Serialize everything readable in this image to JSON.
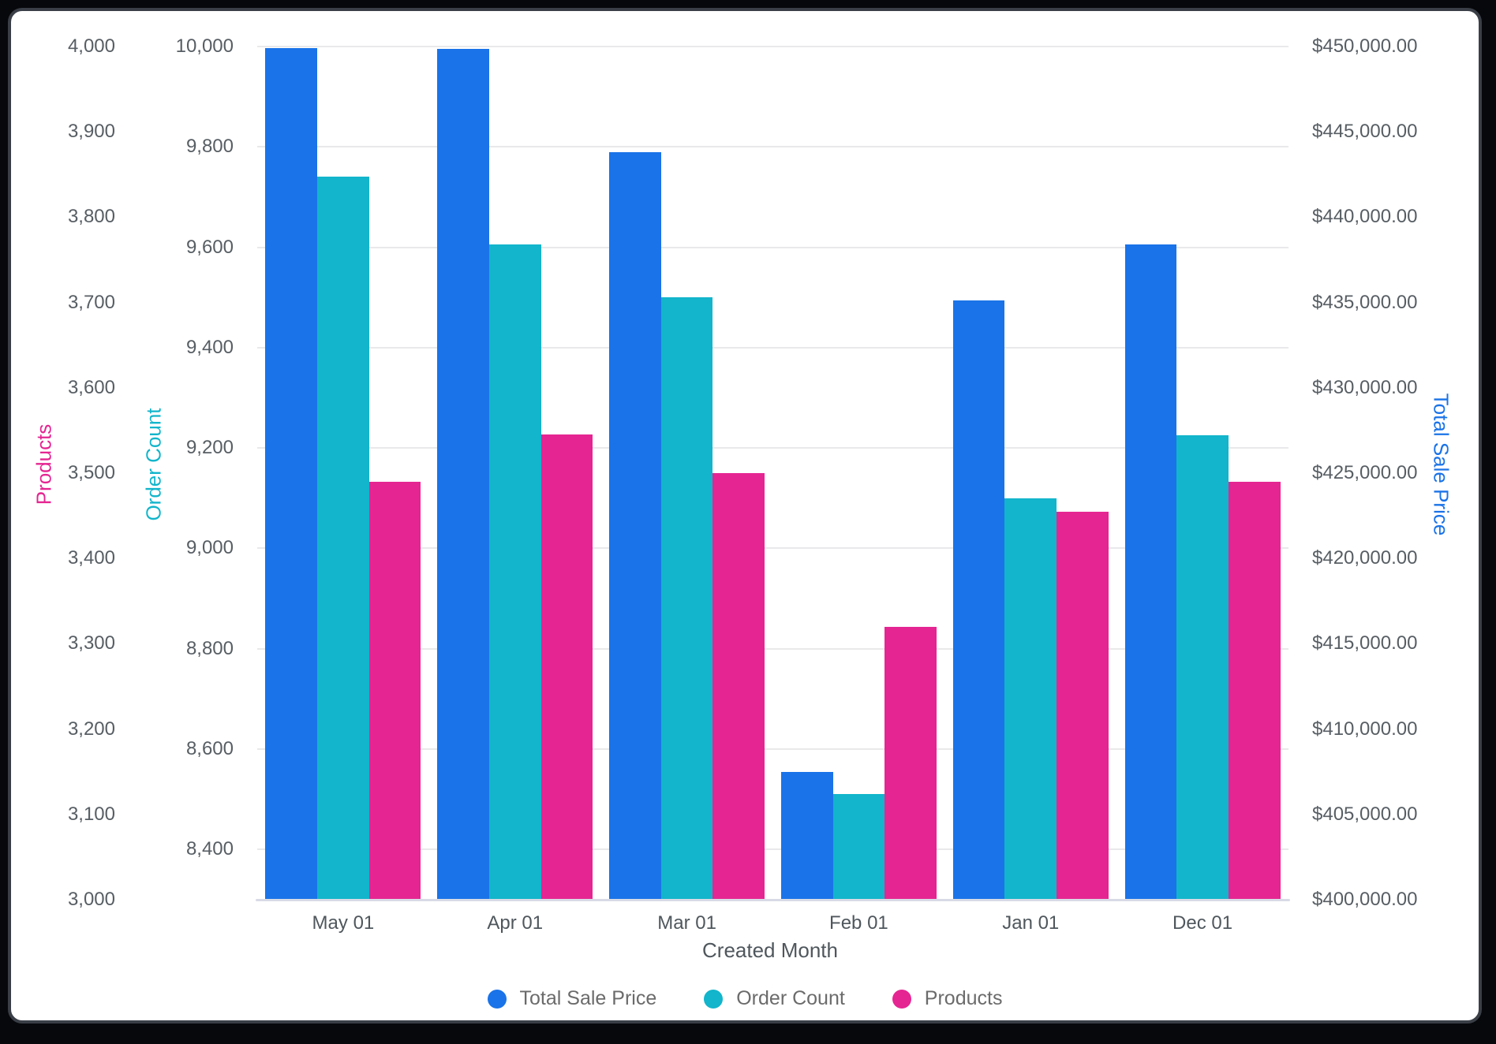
{
  "frame": {
    "background": "#07080B",
    "panel_border": "#3A3F47",
    "panel_background": "#FFFFFF"
  },
  "chart_data": {
    "type": "bar",
    "categories": [
      "May 01",
      "Apr 01",
      "Mar 01",
      "Feb 01",
      "Jan 01",
      "Dec 01"
    ],
    "series": [
      {
        "name": "Total Sale Price",
        "axis": "total_sale_price",
        "color": "#1A73E8",
        "values": [
          449900,
          449850,
          443800,
          407500,
          435100,
          438400
        ]
      },
      {
        "name": "Order Count",
        "axis": "order_count",
        "color": "#12B5CB",
        "values": [
          9740,
          9605,
          9500,
          8510,
          9100,
          9225
        ]
      },
      {
        "name": "Products",
        "axis": "products",
        "color": "#E52592",
        "values": [
          3490,
          3545,
          3500,
          3320,
          3455,
          3490
        ]
      }
    ],
    "xlabel": "Created Month",
    "legend_position": "bottom",
    "grid_color": "#E9E9EB",
    "baseline_color": "#D8DBE6",
    "axes": {
      "products": {
        "title": "Products",
        "color": "#E52592",
        "min": 3000,
        "max": 4000,
        "tick_values": [
          4000,
          3900,
          3800,
          3700,
          3600,
          3500,
          3400,
          3300,
          3200,
          3100,
          3000
        ],
        "tick_labels": [
          "4,000",
          "3,900",
          "3,800",
          "3,700",
          "3,600",
          "3,500",
          "3,400",
          "3,300",
          "3,200",
          "3,100",
          "3,000"
        ]
      },
      "order_count": {
        "title": "Order Count",
        "color": "#12B5CB",
        "min": 8300,
        "max": 10000,
        "tick_values": [
          10000,
          9800,
          9600,
          9400,
          9200,
          9000,
          8800,
          8600,
          8400
        ],
        "tick_labels": [
          "10,000",
          "9,800",
          "9,600",
          "9,400",
          "9,200",
          "9,000",
          "8,800",
          "8,600",
          "8,400"
        ],
        "gridlines": true
      },
      "total_sale_price": {
        "title": "Total Sale Price",
        "color": "#1A73E8",
        "min": 400000,
        "max": 450000,
        "tick_values": [
          450000,
          445000,
          440000,
          435000,
          430000,
          425000,
          420000,
          415000,
          410000,
          405000,
          400000
        ],
        "tick_labels": [
          "$450,000.00",
          "$445,000.00",
          "$440,000.00",
          "$435,000.00",
          "$430,000.00",
          "$425,000.00",
          "$420,000.00",
          "$415,000.00",
          "$410,000.00",
          "$405,000.00",
          "$400,000.00"
        ]
      }
    }
  }
}
